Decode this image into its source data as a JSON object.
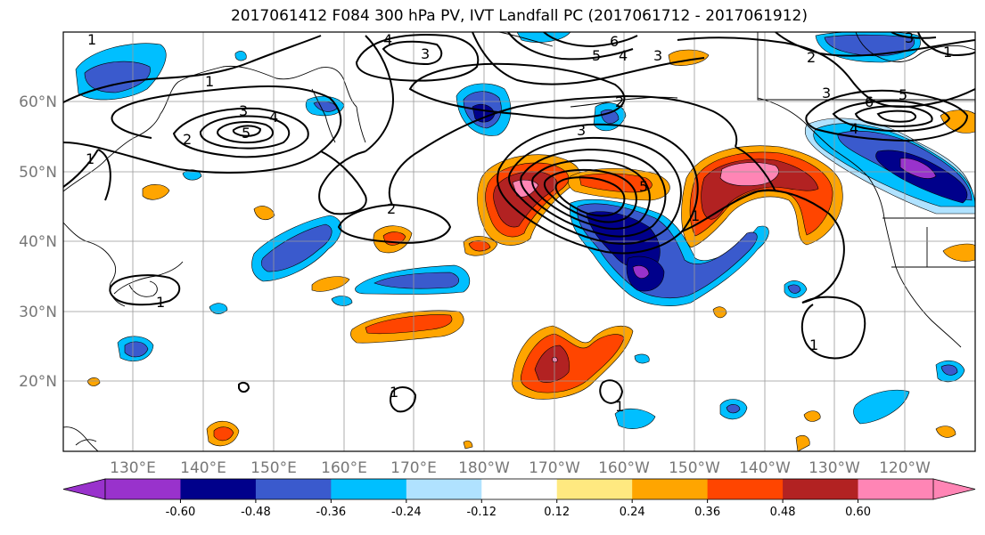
{
  "title": "2017061412 F084 300 hPa PV, IVT Landfall PC (2017061712 - 2017061912)",
  "latitude_labels": [
    "60°N",
    "50°N",
    "40°N",
    "30°N",
    "20°N"
  ],
  "longitude_labels": [
    "130°E",
    "140°E",
    "150°E",
    "160°E",
    "170°E",
    "180°W",
    "170°W",
    "160°W",
    "150°W",
    "140°W",
    "130°W",
    "120°W"
  ],
  "colorbar": {
    "tick_labels": [
      "-0.60",
      "-0.48",
      "-0.36",
      "-0.24",
      "-0.12",
      "0.12",
      "0.24",
      "0.36",
      "0.48",
      "0.60"
    ],
    "colors": [
      "#9932cc",
      "#00008b",
      "#3a5acd",
      "#00bfff",
      "#b0e2ff",
      "#ffffff",
      "#ffe980",
      "#ffa500",
      "#ff4500",
      "#b22222",
      "#ff85b5"
    ]
  },
  "contour_labels": [
    "1",
    "1",
    "2",
    "3",
    "4",
    "5",
    "1",
    "2",
    "4",
    "3",
    "6",
    "5",
    "4",
    "3",
    "2",
    "3",
    "5",
    "1",
    "3",
    "6",
    "5",
    "4",
    "2",
    "3",
    "1",
    "1",
    "1",
    "1",
    "1"
  ]
}
